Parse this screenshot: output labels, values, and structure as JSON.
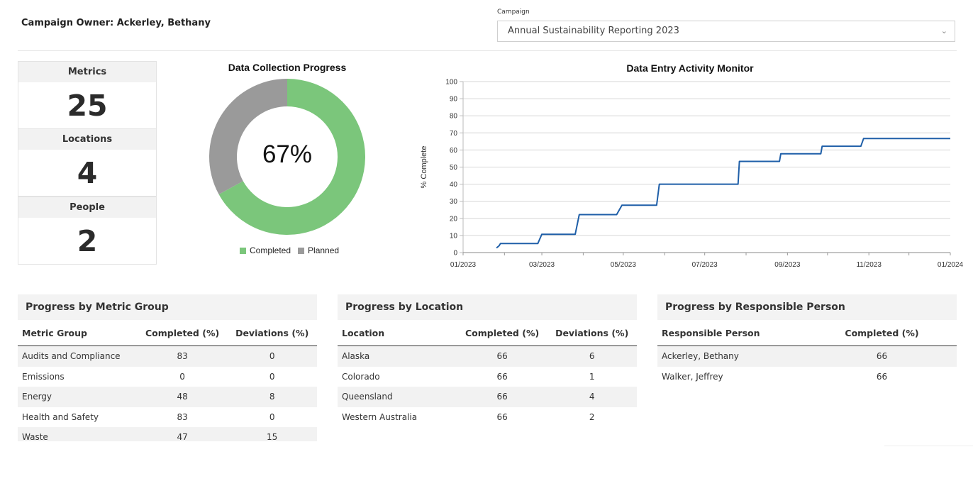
{
  "header": {
    "owner_label": "Campaign Owner: Ackerley, Bethany",
    "campaign_label": "Campaign",
    "campaign_value": "Annual Sustainability Reporting 2023"
  },
  "kpis": [
    {
      "label": "Metrics",
      "value": "25"
    },
    {
      "label": "Locations",
      "value": "4"
    },
    {
      "label": "People",
      "value": "2"
    }
  ],
  "colors": {
    "completed": "#7bc67b",
    "planned": "#9a9a9a",
    "line": "#1f5fa8"
  },
  "donut": {
    "title": "Data Collection Progress",
    "center": "67%",
    "legend": [
      "Completed",
      "Planned"
    ]
  },
  "chart_data": {
    "type": "line",
    "title": "Data Entry Activity Monitor",
    "xlabel": "",
    "ylabel": "% Complete",
    "ylim": [
      0,
      100
    ],
    "yticks": [
      "0",
      "10",
      "20",
      "30",
      "40",
      "50",
      "60",
      "70",
      "80",
      "90",
      "100"
    ],
    "xticks": [
      "01/2023",
      "03/2023",
      "05/2023",
      "07/2023",
      "09/2023",
      "11/2023",
      "01/2024"
    ],
    "grid": true,
    "series": [
      {
        "x": [
          "2023-01-26",
          "2023-01-28",
          "2023-01-29",
          "2023-02-26",
          "2023-03-01",
          "2023-03-26",
          "2023-03-29",
          "2023-04-26",
          "2023-04-30",
          "2023-05-26",
          "2023-05-28",
          "2023-06-26",
          "2023-07-26",
          "2023-07-27",
          "2023-08-26",
          "2023-08-27",
          "2023-09-26",
          "2023-09-27",
          "2023-10-26",
          "2023-10-28",
          "2024-01-01"
        ],
        "y": [
          2.7,
          4,
          5.3,
          5.3,
          10.7,
          10.7,
          22.2,
          22.2,
          27.7,
          27.7,
          40,
          40,
          40,
          53.3,
          53.3,
          57.8,
          57.8,
          62.2,
          62.2,
          66.7,
          66.7
        ]
      }
    ],
    "donut": {
      "type": "pie",
      "labels": [
        "Completed",
        "Planned"
      ],
      "values": [
        67,
        33
      ]
    }
  },
  "metric_group": {
    "title": "Progress by Metric Group",
    "columns": [
      "Metric Group",
      "Completed (%)",
      "Deviations (%)"
    ],
    "rows": [
      [
        "Audits and Compliance",
        "83",
        "0"
      ],
      [
        "Emissions",
        "0",
        "0"
      ],
      [
        "Energy",
        "48",
        "8"
      ],
      [
        "Health and Safety",
        "83",
        "0"
      ],
      [
        "Waste",
        "47",
        "15"
      ]
    ]
  },
  "location": {
    "title": "Progress by Location",
    "columns": [
      "Location",
      "Completed (%)",
      "Deviations (%)"
    ],
    "rows": [
      [
        "Alaska",
        "66",
        "6"
      ],
      [
        "Colorado",
        "66",
        "1"
      ],
      [
        "Queensland",
        "66",
        "4"
      ],
      [
        "Western Australia",
        "66",
        "2"
      ]
    ]
  },
  "person": {
    "title": "Progress by Responsible Person",
    "columns": [
      "Responsible Person",
      "Completed (%)"
    ],
    "rows": [
      [
        "Ackerley, Bethany",
        "66"
      ],
      [
        "Walker, Jeffrey",
        "66"
      ]
    ]
  }
}
